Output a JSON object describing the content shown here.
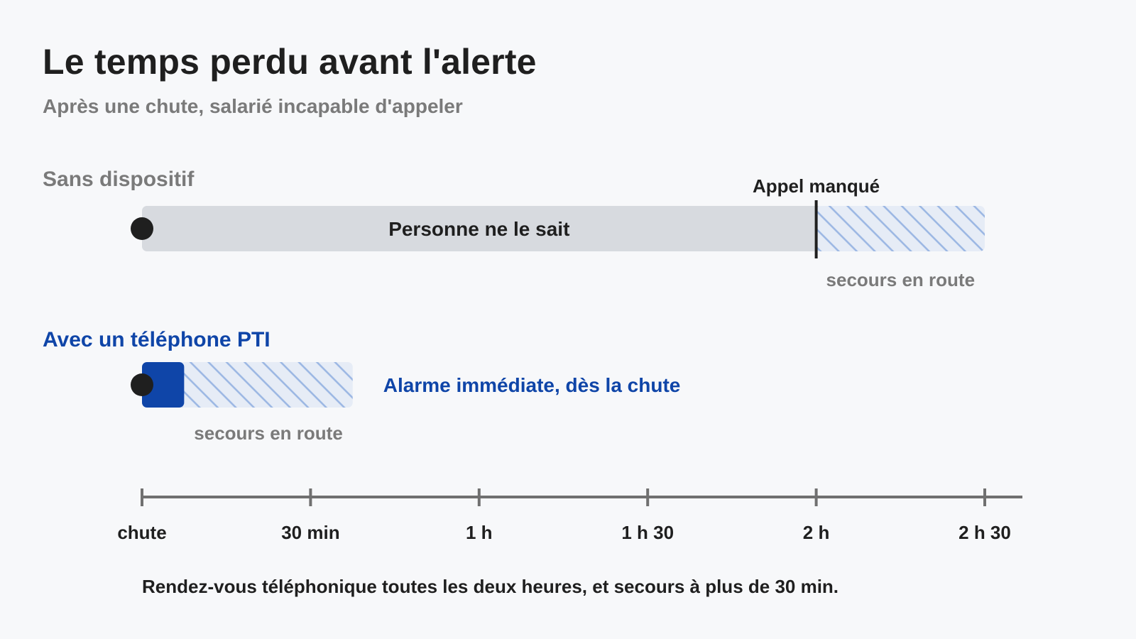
{
  "title": "Le temps perdu avant l'alerte",
  "subtitle": "Après une chute, salarié incapable d'appeler",
  "footnote": "Rendez-vous téléphonique toutes les deux heures, et secours à plus de 30 min.",
  "colors": {
    "gray_bar": "#d7dadf",
    "blue": "#0f45a8",
    "hatch_bg": "#e6ecf6",
    "hatch_line": "#9ab6e3",
    "muted": "#7a7a7a",
    "dark": "#1f1f1f",
    "axis": "#707070"
  },
  "chart_data": {
    "type": "timeline",
    "unit": "minutes",
    "xlim": [
      0,
      150
    ],
    "ticks": [
      {
        "value": 0,
        "label": "chute"
      },
      {
        "value": 30,
        "label": "30 min"
      },
      {
        "value": 60,
        "label": "1 h"
      },
      {
        "value": 90,
        "label": "1 h 30"
      },
      {
        "value": 120,
        "label": "2 h"
      },
      {
        "value": 150,
        "label": "2 h 30"
      }
    ],
    "rows": [
      {
        "label": "Sans dispositif",
        "segments": [
          {
            "start": 0,
            "end": 120,
            "style": "gray",
            "label": "Personne ne le sait"
          },
          {
            "start": 120,
            "end": 150,
            "style": "hatched",
            "label": "secours en route"
          }
        ],
        "marker": {
          "value": 120,
          "label": "Appel manqué"
        }
      },
      {
        "label": "Avec un téléphone PTI",
        "segments": [
          {
            "start": 0,
            "end": 7.5,
            "style": "blue",
            "label": ""
          },
          {
            "start": 7.5,
            "end": 37.5,
            "style": "hatched",
            "label": "secours en route"
          }
        ],
        "annotation": "Alarme immédiate, dès la chute"
      }
    ]
  }
}
